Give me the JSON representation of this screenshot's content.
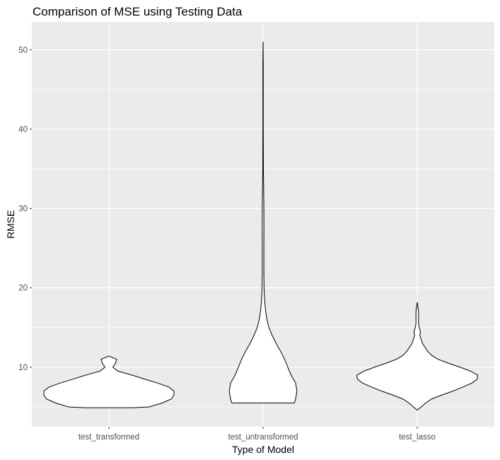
{
  "chart_data": {
    "type": "violin",
    "title": "Comparison of MSE using Testing Data",
    "xlabel": "Type of Model",
    "ylabel": "RMSE",
    "categories": [
      "test_transformed",
      "test_untransformed",
      "test_lasso"
    ],
    "y_ticks": [
      10,
      20,
      30,
      40,
      50
    ],
    "ylim": [
      2.5,
      53.5
    ],
    "grid": true,
    "legend": "none",
    "colors": {
      "panel": "#EBEBEB",
      "grid": "#FFFFFF",
      "fill": "#FFFFFF",
      "outline": "#000000"
    },
    "series": [
      {
        "category": "test_transformed",
        "min": 4.9,
        "max": 11.4,
        "density_profile": [
          [
            4.9,
            0.38
          ],
          [
            5.0,
            0.62
          ],
          [
            5.5,
            0.82
          ],
          [
            6.0,
            0.96
          ],
          [
            6.5,
            1.0
          ],
          [
            7.0,
            1.0
          ],
          [
            7.5,
            0.92
          ],
          [
            8.0,
            0.75
          ],
          [
            8.5,
            0.55
          ],
          [
            9.0,
            0.36
          ],
          [
            9.5,
            0.14
          ],
          [
            10.0,
            0.06
          ],
          [
            10.5,
            0.1
          ],
          [
            11.0,
            0.12
          ],
          [
            11.4,
            0.0
          ]
        ]
      },
      {
        "category": "test_untransformed",
        "min": 5.5,
        "max": 51.0,
        "density_profile": [
          [
            5.5,
            0.48
          ],
          [
            6.0,
            0.5
          ],
          [
            7.0,
            0.52
          ],
          [
            8.0,
            0.5
          ],
          [
            9.0,
            0.43
          ],
          [
            10.0,
            0.38
          ],
          [
            11.0,
            0.33
          ],
          [
            12.0,
            0.27
          ],
          [
            13.0,
            0.2
          ],
          [
            14.0,
            0.14
          ],
          [
            15.0,
            0.09
          ],
          [
            16.0,
            0.06
          ],
          [
            17.0,
            0.04
          ],
          [
            18.0,
            0.028
          ],
          [
            19.0,
            0.02
          ],
          [
            20.0,
            0.015
          ],
          [
            22.0,
            0.012
          ],
          [
            25.0,
            0.012
          ],
          [
            28.0,
            0.013
          ],
          [
            30.0,
            0.012
          ],
          [
            33.0,
            0.008
          ],
          [
            35.0,
            0.005
          ],
          [
            40.0,
            0.003
          ],
          [
            45.0,
            0.003
          ],
          [
            48.0,
            0.003
          ],
          [
            51.0,
            0.0
          ]
        ]
      },
      {
        "category": "test_lasso",
        "min": 4.6,
        "max": 18.2,
        "density_profile": [
          [
            4.6,
            0.0
          ],
          [
            5.0,
            0.06
          ],
          [
            5.5,
            0.13
          ],
          [
            6.0,
            0.22
          ],
          [
            6.5,
            0.38
          ],
          [
            7.0,
            0.55
          ],
          [
            7.5,
            0.7
          ],
          [
            8.0,
            0.84
          ],
          [
            8.5,
            0.92
          ],
          [
            9.0,
            0.93
          ],
          [
            9.5,
            0.82
          ],
          [
            10.0,
            0.66
          ],
          [
            10.5,
            0.48
          ],
          [
            11.0,
            0.32
          ],
          [
            11.5,
            0.22
          ],
          [
            12.0,
            0.16
          ],
          [
            12.5,
            0.12
          ],
          [
            13.0,
            0.08
          ],
          [
            13.5,
            0.06
          ],
          [
            14.0,
            0.04
          ],
          [
            14.5,
            0.05
          ],
          [
            15.0,
            0.03
          ],
          [
            15.5,
            0.02
          ],
          [
            16.0,
            0.02
          ],
          [
            17.0,
            0.02
          ],
          [
            18.2,
            0.0
          ]
        ]
      }
    ]
  }
}
